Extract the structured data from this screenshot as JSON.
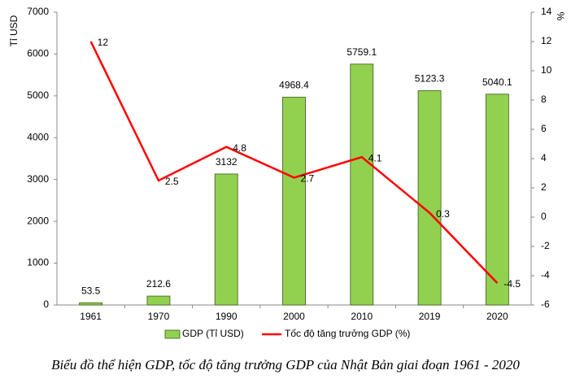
{
  "chart_data": {
    "type": "bar",
    "title": "Biểu đồ thể hiện GDP, tốc độ tăng trưởng GDP của Nhật Bản giai đoạn 1961 - 2020",
    "y_label": "Tỉ USD",
    "y2_label": "%",
    "categories": [
      "1961",
      "1970",
      "1990",
      "2000",
      "2010",
      "2019",
      "2020"
    ],
    "series": [
      {
        "name": "GDP (Tỉ USD)",
        "color": "#92d050",
        "values": [
          53.5,
          212.6,
          3132,
          4968.4,
          5759.1,
          5123.3,
          5040.1
        ]
      },
      {
        "name": "Tốc độ tăng trưởng GDP (%)",
        "type": "line",
        "axis": "y2",
        "color": "#ff0000",
        "values": [
          12,
          2.5,
          4.8,
          2.7,
          4.1,
          0.3,
          -4.5
        ]
      }
    ],
    "ylim": [
      0,
      7000
    ],
    "yticks": [
      0,
      1000,
      2000,
      3000,
      4000,
      5000,
      6000,
      7000
    ],
    "y2lim": [
      -6,
      14
    ],
    "y2ticks": [
      -6,
      -4,
      -2,
      0,
      2,
      4,
      6,
      8,
      10,
      12,
      14
    ]
  }
}
